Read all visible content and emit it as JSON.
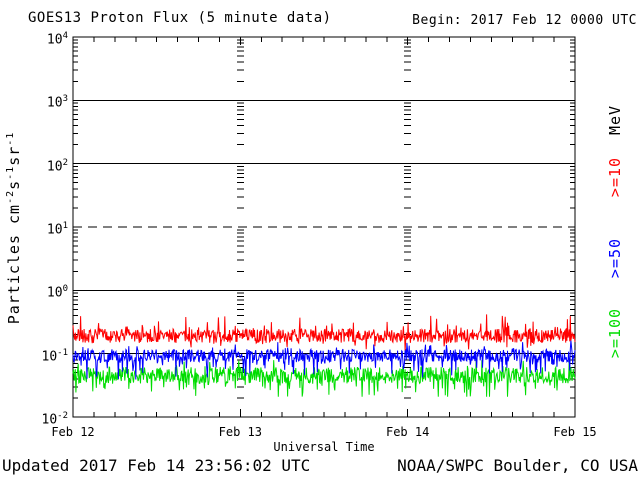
{
  "header": {
    "title": "GOES13 Proton Flux (5 minute data)",
    "begin": "Begin: 2017 Feb 12 0000 UTC"
  },
  "footer": {
    "updated": "Updated 2017 Feb 14 23:56:02 UTC",
    "source": "NOAA/SWPC Boulder, CO USA"
  },
  "chart_data": {
    "type": "line",
    "title": "GOES13 Proton Flux (5 minute data)",
    "xlabel": "Universal Time",
    "ylabel": "Particles cm^-2 s^-1 sr^-1",
    "ylabel_parts": [
      {
        "text": "Particles cm"
      },
      {
        "sup": "-2"
      },
      {
        "text": "s"
      },
      {
        "sup": "-1"
      },
      {
        "text": "sr"
      },
      {
        "sup": "-1"
      }
    ],
    "x_tick_labels": [
      "Feb 12",
      "Feb 13",
      "Feb 14",
      "Feb 15"
    ],
    "x_span_days": 3,
    "samples_per_day": 288,
    "hour_ticks_per_day": 8,
    "y_scale": "log10",
    "y_tick_base": "10",
    "y_decade_exponents": [
      4,
      3,
      2,
      1,
      0,
      -1,
      -2
    ],
    "y_range": [
      0.01,
      10000
    ],
    "gridlines_solid_at": [
      1000,
      100,
      1,
      0.1
    ],
    "gridlines_dashed_at": [
      10
    ],
    "axis_color": "#000000",
    "background_color": "#ffffff",
    "right_axis_labels": [
      {
        "text": "MeV",
        "color": "#000000",
        "center_y": 120
      },
      {
        "text": ">=10",
        "color": "#ff0000",
        "center_y": 177
      },
      {
        "text": ">=50",
        "color": "#0000ff",
        "center_y": 258
      },
      {
        "text": ">=100",
        "color": "#00dd00",
        "center_y": 333
      }
    ],
    "series": [
      {
        "name": ">=10 MeV",
        "color": "#ff0000",
        "approx_flux_mean": 0.19,
        "approx_flux_min": 0.11,
        "approx_flux_max": 0.45,
        "gen": {
          "seed": 7,
          "log_base": -0.72,
          "log_noise": 0.11,
          "spike_prob": 0.1,
          "spike_amp": 0.28,
          "dip_prob": 0.06,
          "dip_amp": 0.14,
          "log_min": -0.95,
          "log_max": -0.34
        }
      },
      {
        "name": ">=50 MeV",
        "color": "#0000ff",
        "approx_flux_mean": 0.095,
        "approx_flux_min": 0.03,
        "approx_flux_max": 0.17,
        "gen": {
          "seed": 13,
          "log_base": -1.03,
          "log_noise": 0.1,
          "spike_prob": 0.07,
          "spike_amp": 0.18,
          "dip_prob": 0.14,
          "dip_amp": 0.32,
          "log_min": -1.52,
          "log_max": -0.79
        }
      },
      {
        "name": ">=100 MeV",
        "color": "#00dd00",
        "approx_flux_mean": 0.046,
        "approx_flux_min": 0.021,
        "approx_flux_max": 0.095,
        "gen": {
          "seed": 42,
          "log_base": -1.34,
          "log_noise": 0.13,
          "spike_prob": 0.06,
          "spike_amp": 0.16,
          "dip_prob": 0.14,
          "dip_amp": 0.28,
          "log_min": -1.68,
          "log_max": -1.02
        }
      }
    ]
  }
}
